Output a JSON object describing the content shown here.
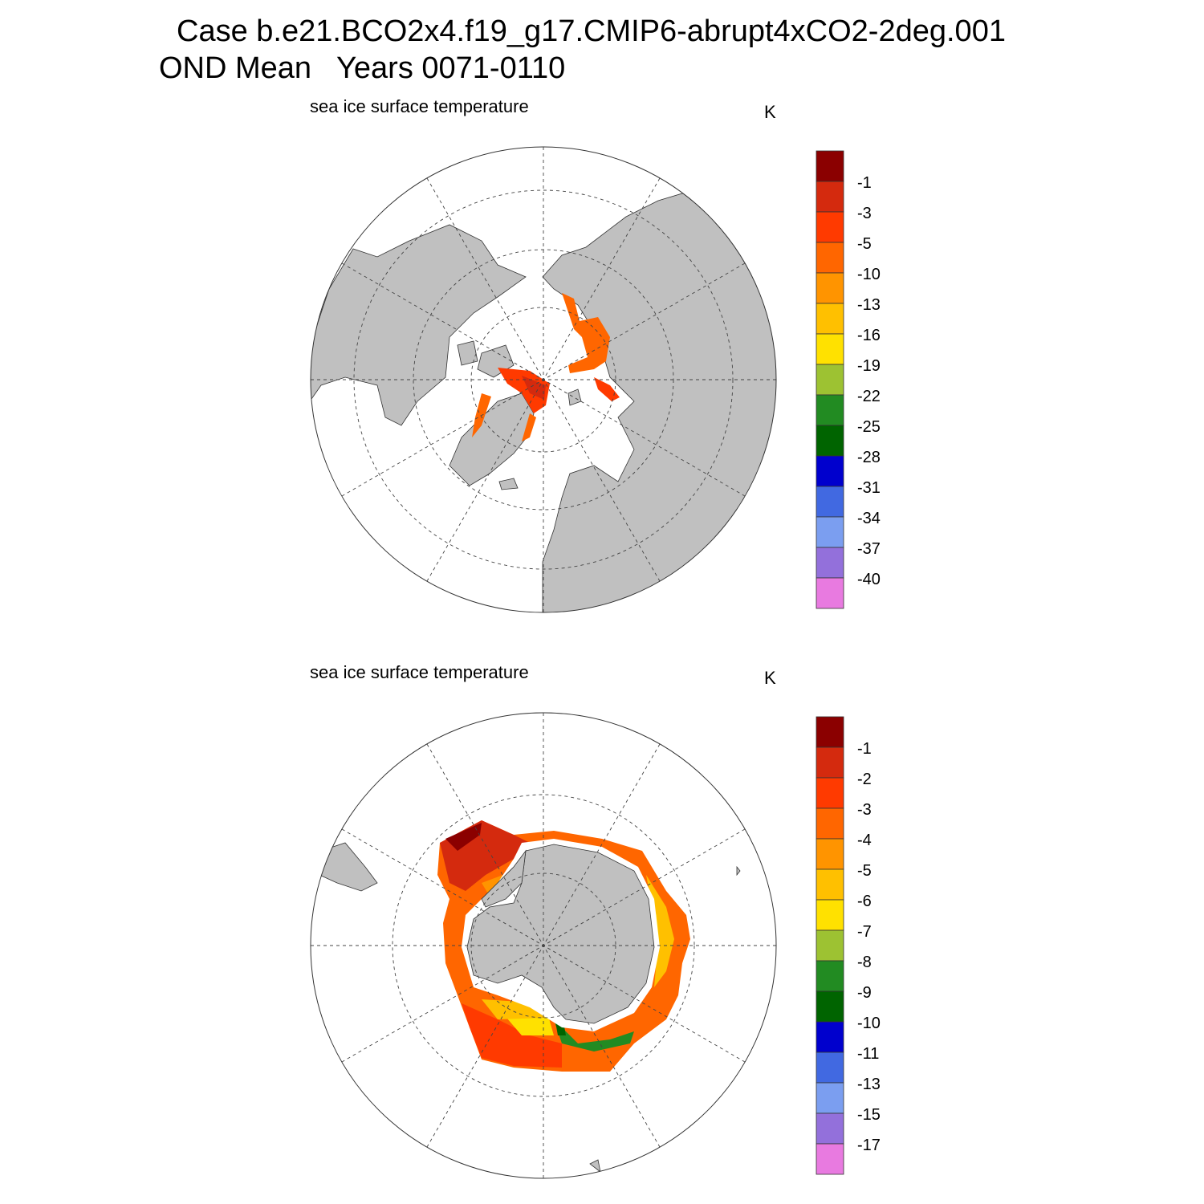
{
  "header": {
    "case_line": "Case b.e21.BCO2x4.f19_g17.CMIP6-abrupt4xCO2-2deg.001",
    "mean_line": "OND Mean   Years 0071-0110"
  },
  "panels": [
    {
      "id": "north",
      "title": "sea ice surface temperature",
      "unit": "K",
      "colorbar_labels": [
        "-1",
        "-3",
        "-5",
        "-10",
        "-13",
        "-16",
        "-19",
        "-22",
        "-25",
        "-28",
        "-31",
        "-34",
        "-37",
        "-40"
      ]
    },
    {
      "id": "south",
      "title": "sea ice surface temperature",
      "unit": "K",
      "colorbar_labels": [
        "-1",
        "-2",
        "-3",
        "-4",
        "-5",
        "-6",
        "-7",
        "-8",
        "-9",
        "-10",
        "-11",
        "-13",
        "-15",
        "-17"
      ]
    }
  ],
  "colors": {
    "palette": [
      "#8b0000",
      "#d42a0e",
      "#ff3a00",
      "#ff6600",
      "#ff9400",
      "#ffc000",
      "#ffe100",
      "#9dc232",
      "#228b22",
      "#006400",
      "#0000cd",
      "#4169e1",
      "#7b9ef0",
      "#9370db",
      "#e87ae0"
    ],
    "land": "#c0c0c0",
    "ocean": "#ffffff"
  }
}
